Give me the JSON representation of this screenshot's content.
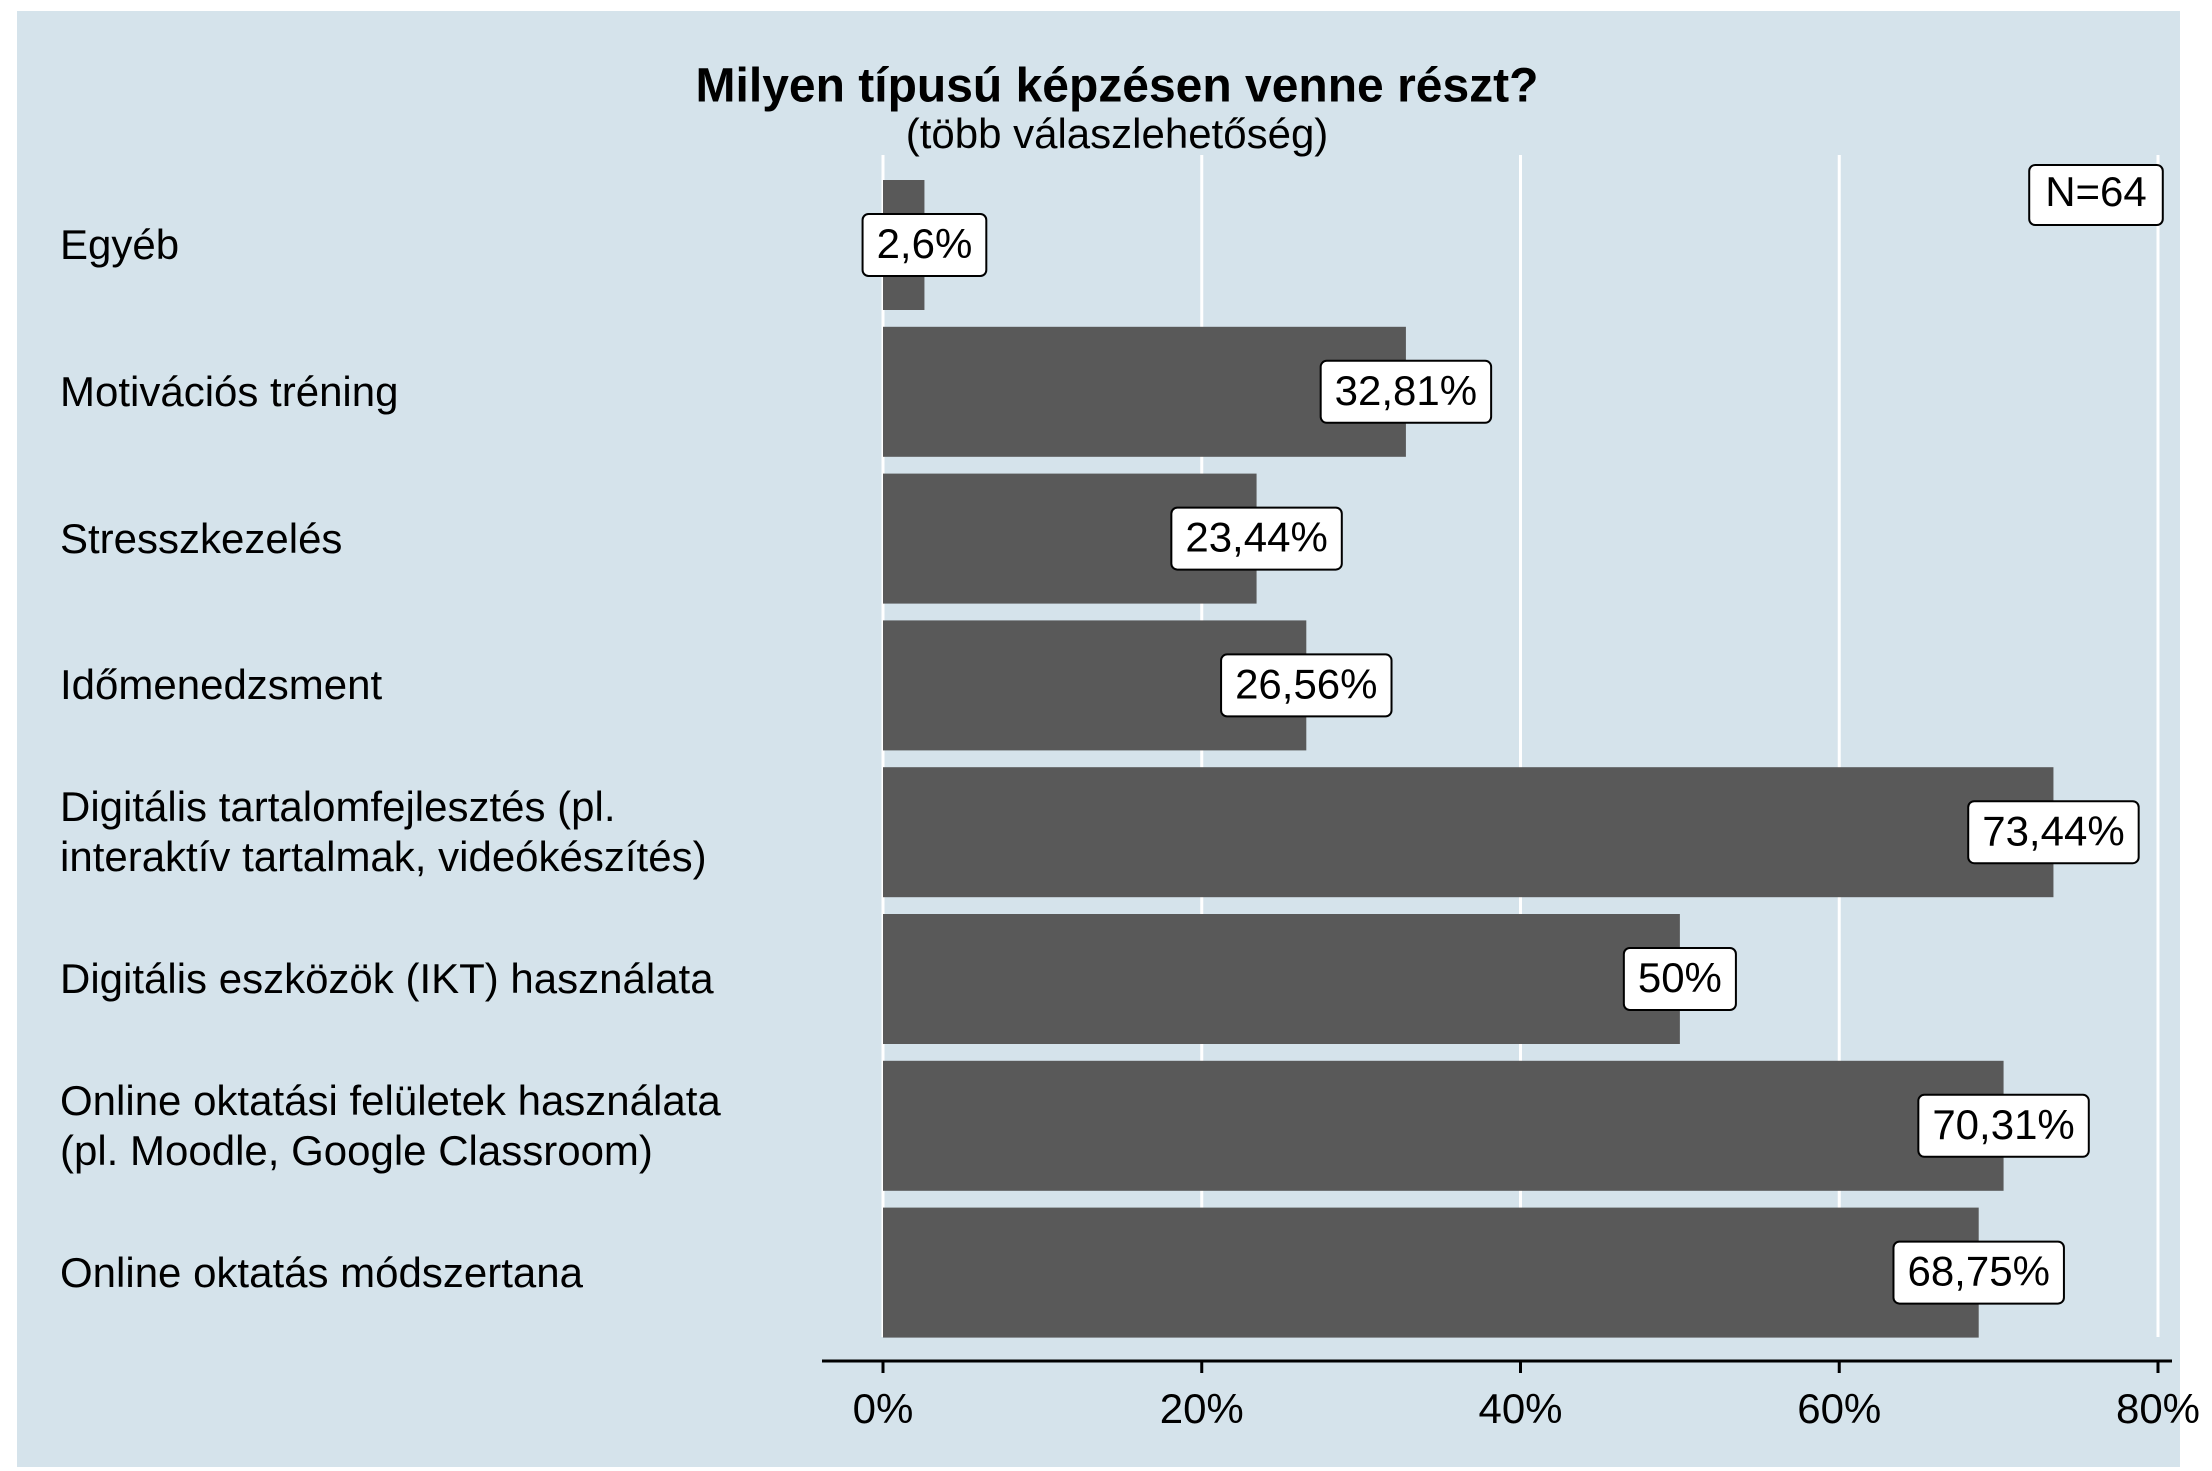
{
  "chart_data": {
    "type": "barh",
    "title": "Milyen típusú képzésen venne részt?",
    "subtitle": "(több válaszlehetőség)",
    "annotation": "N=64",
    "categories": [
      "Egyéb",
      "Motivációs tréning",
      "Stresszkezelés",
      "Időmenedzsment",
      "Digitális tartalomfejlesztés (pl.\ninteraktív tartalmak, videókészítés)",
      "Digitális eszközök (IKT) használata",
      "Online oktatási felületek használata\n(pl. Moodle, Google Classroom)",
      "Online oktatás módszertana"
    ],
    "values": [
      2.6,
      32.81,
      23.44,
      26.56,
      73.44,
      50,
      70.31,
      68.75
    ],
    "value_labels": [
      "2,6%",
      "32,81%",
      "23,44%",
      "26,56%",
      "73,44%",
      "50%",
      "70,31%",
      "68,75%"
    ],
    "color": "#595959",
    "xlim": [
      0,
      80
    ],
    "xticks": [
      {
        "value": 0,
        "label": "0%"
      },
      {
        "value": 20,
        "label": "20%"
      },
      {
        "value": 40,
        "label": "40%"
      },
      {
        "value": 60,
        "label": "60%"
      },
      {
        "value": 80,
        "label": "80%"
      }
    ],
    "grid": true
  }
}
